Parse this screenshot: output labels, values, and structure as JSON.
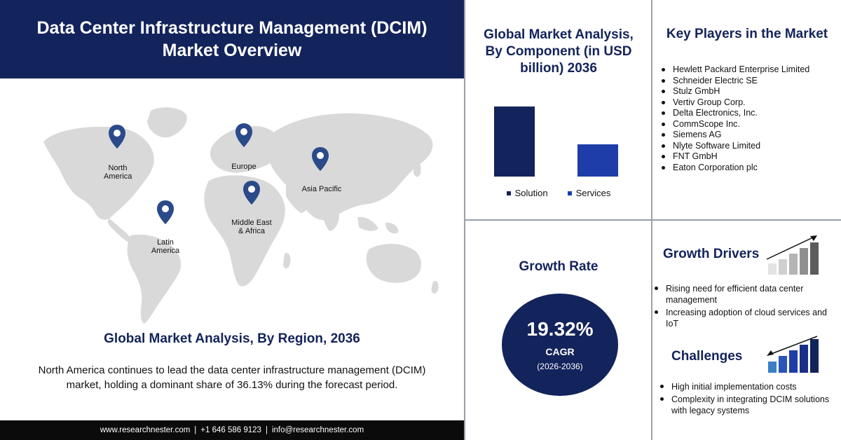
{
  "header": {
    "title_line1": "Data Center Infrastructure Management (DCIM)",
    "title_line2": "Market Overview"
  },
  "map": {
    "pins": [
      {
        "label_line1": "North",
        "label_line2": "America"
      },
      {
        "label_line1": "Europe",
        "label_line2": ""
      },
      {
        "label_line1": "Asia Pacific",
        "label_line2": ""
      },
      {
        "label_line1": "Middle East",
        "label_line2": "& Africa"
      },
      {
        "label_line1": "Latin",
        "label_line2": "America"
      }
    ],
    "pin_color": "#2b4a8a",
    "land_color": "#d9d9d9"
  },
  "region": {
    "title": "Global Market Analysis, By Region, 2036",
    "desc_line1": "North America continues to lead the data center infrastructure management (DCIM)",
    "desc_line2": "market, holding a dominant share of 36.13% during the forecast period."
  },
  "footer": {
    "website": "www.researchnester.com",
    "phone": "+1 646 586 9123",
    "email": "info@researchnester.com",
    "separator": "|"
  },
  "chart_data": {
    "type": "bar",
    "title": "Global Market Analysis, By Component (in USD billion) 2036",
    "title_lines": [
      "Global Market Analysis,",
      "By Component (in USD",
      "billion) 2036"
    ],
    "categories": [
      "Solution",
      "Services"
    ],
    "values": [
      100,
      46
    ],
    "value_note": "relative bar heights; no axis or value labels printed",
    "colors": [
      "#13235b",
      "#1e3da8"
    ],
    "ylim": [
      0,
      100
    ],
    "grid": false,
    "legend": "bottom"
  },
  "players": {
    "title": "Key Players in the Market",
    "items": [
      "Hewlett Packard Enterprise Limited",
      "Schneider Electric SE",
      "Stulz GmbH",
      "Vertiv Group Corp.",
      "Delta Electronics, Inc.",
      "CommScope Inc.",
      "Siemens AG",
      "Nlyte Software Limited",
      "FNT GmbH",
      "Eaton Corporation plc"
    ]
  },
  "growth": {
    "title": "Growth Rate",
    "value": "19.32%",
    "label": "CAGR",
    "period": "(2026-2036)"
  },
  "drivers": {
    "title": "Growth Drivers",
    "items": [
      "Rising need for efficient data center management",
      "Increasing adoption of cloud services and IoT"
    ]
  },
  "challenges": {
    "title": "Challenges",
    "items": [
      "High initial implementation costs",
      "Complexity in integrating DCIM solutions with legacy systems"
    ]
  },
  "colors": {
    "navy": "#13235b",
    "blue": "#1e3da8",
    "footer": "#0b0b0b",
    "divider": "#9aa0aa"
  }
}
